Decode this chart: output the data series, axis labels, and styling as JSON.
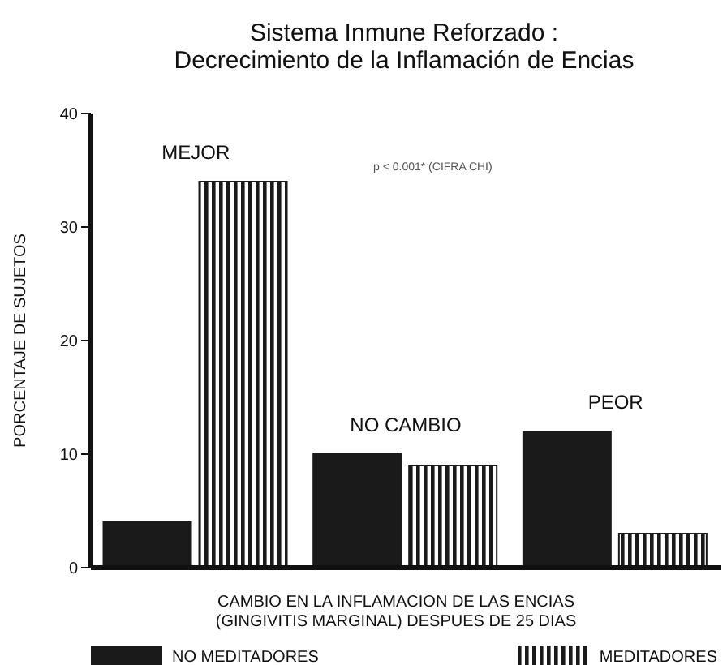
{
  "chart_data": {
    "type": "bar",
    "title": "Sistema Inmune Reforzado :\nDecrecimiento de la Inflamación de Encias",
    "xlabel": "CAMBIO EN LA INFLAMACION DE LAS ENCIAS\n(GINGIVITIS MARGINAL) DESPUES DE 25 DIAS",
    "ylabel": "PORCENTAJE DE SUJETOS",
    "categories": [
      "MEJOR",
      "NO CAMBIO",
      "PEOR"
    ],
    "series": [
      {
        "name": "NO MEDITADORES",
        "color": "#1a1a1a",
        "values": [
          4,
          10,
          12
        ]
      },
      {
        "name": "MEDITADORES",
        "color": "#1a1a1a",
        "values": [
          34,
          9,
          3
        ]
      }
    ],
    "ylim": [
      0,
      40
    ],
    "yticks": [
      0,
      10,
      20,
      30,
      40
    ],
    "grid": false,
    "legend": "bottom",
    "annotations": [
      "p < 0.001* (CIFRA CHI)"
    ]
  }
}
